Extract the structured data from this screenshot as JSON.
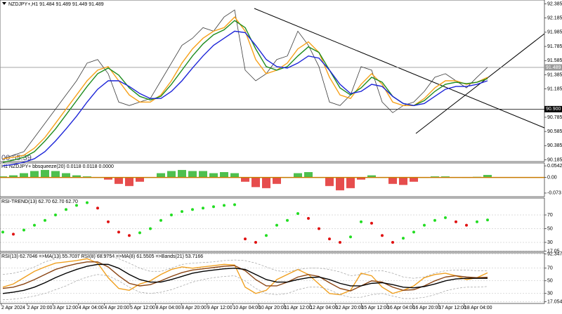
{
  "chart_data": [
    {
      "type": "line",
      "title": "NZDJPY+,H1  91.484 91.489 91.449 91.489",
      "timer": "00:55:39",
      "ylim": [
        90.16,
        92.44
      ],
      "yticks": [
        92.385,
        92.185,
        91.985,
        91.785,
        91.585,
        91.385,
        91.185,
        90.785,
        90.585,
        90.385,
        90.185
      ],
      "price_lines": [
        {
          "value": 91.489,
          "label": "91.489",
          "color": "#9a9a9a"
        },
        {
          "value": 90.9,
          "label": "90.900",
          "color": "#000000"
        }
      ],
      "series": [
        {
          "color": "#3a3a3a",
          "values": [
            90.2,
            90.25,
            90.3,
            90.5,
            90.7,
            90.9,
            91.1,
            91.3,
            91.55,
            91.6,
            91.4,
            91.0,
            90.95,
            91.0,
            91.05,
            91.3,
            91.55,
            91.8,
            91.9,
            92.05,
            92.0,
            92.2,
            92.3,
            91.45,
            91.3,
            91.4,
            91.6,
            91.65,
            92.0,
            91.8,
            91.5,
            91.0,
            90.95,
            91.1,
            91.5,
            91.45,
            91.0,
            90.85,
            90.95,
            91.0,
            91.15,
            91.35,
            91.4,
            91.3,
            91.2,
            91.35,
            91.49
          ]
        },
        {
          "color": "#f7a11a",
          "values": [
            90.2,
            90.22,
            90.25,
            90.35,
            90.5,
            90.7,
            90.9,
            91.1,
            91.3,
            91.45,
            91.5,
            91.3,
            91.1,
            91.0,
            91.0,
            91.1,
            91.3,
            91.55,
            91.75,
            91.9,
            92.0,
            92.05,
            92.2,
            92.0,
            91.6,
            91.4,
            91.45,
            91.55,
            91.75,
            91.85,
            91.7,
            91.35,
            91.1,
            91.05,
            91.25,
            91.4,
            91.25,
            91.0,
            90.95,
            90.95,
            91.05,
            91.2,
            91.3,
            91.3,
            91.25,
            91.28,
            91.35
          ]
        },
        {
          "color": "#1e8c1e",
          "values": [
            90.15,
            90.18,
            90.22,
            90.3,
            90.45,
            90.62,
            90.82,
            91.02,
            91.22,
            91.4,
            91.48,
            91.38,
            91.2,
            91.08,
            91.03,
            91.08,
            91.25,
            91.45,
            91.65,
            91.82,
            91.95,
            92.02,
            92.15,
            92.05,
            91.75,
            91.5,
            91.45,
            91.5,
            91.65,
            91.78,
            91.7,
            91.45,
            91.2,
            91.1,
            91.2,
            91.35,
            91.28,
            91.08,
            90.98,
            90.95,
            91.02,
            91.15,
            91.25,
            91.28,
            91.26,
            91.28,
            91.33
          ]
        },
        {
          "color": "#1c24d8",
          "values": [
            90.1,
            90.12,
            90.15,
            90.2,
            90.3,
            90.45,
            90.62,
            90.8,
            91.0,
            91.18,
            91.3,
            91.3,
            91.22,
            91.12,
            91.05,
            91.05,
            91.15,
            91.3,
            91.48,
            91.65,
            91.8,
            91.9,
            92.0,
            91.98,
            91.8,
            91.6,
            91.5,
            91.48,
            91.55,
            91.65,
            91.62,
            91.45,
            91.25,
            91.12,
            91.15,
            91.25,
            91.22,
            91.08,
            90.98,
            90.95,
            90.98,
            91.08,
            91.18,
            91.22,
            91.22,
            91.25,
            91.3
          ]
        }
      ]
    },
    {
      "type": "bar",
      "title": "H1 NZDJPY+ bbsqueeze(20) 0.0118 0.0118 0.0000",
      "ylim": [
        -0.0897,
        0.0676
      ],
      "yticks": [
        0.0542,
        {
          "value": 0,
          "label": "0.00"
        },
        -0.073
      ],
      "positive_color": "#22b022",
      "negative_color": "#e02020",
      "base_color": "#c87a00",
      "values": [
        0.005,
        0.01,
        0.02,
        0.03,
        0.035,
        0.03,
        0.02,
        0.01,
        0.005,
        0.0,
        -0.01,
        -0.03,
        -0.04,
        -0.02,
        0.0,
        0.02,
        0.03,
        0.035,
        0.03,
        0.03,
        0.02,
        0.025,
        0.02,
        -0.02,
        -0.045,
        -0.05,
        -0.03,
        0.0,
        0.02,
        0.025,
        0.0,
        -0.04,
        -0.06,
        -0.05,
        -0.01,
        0.01,
        0.0,
        -0.03,
        -0.035,
        -0.02,
        0.0,
        0.005,
        0.005,
        0.002,
        0.0,
        0.003,
        0.0118
      ]
    },
    {
      "type": "dots",
      "title": "RSI-TREND(13) 62.70 62.70 62.70",
      "ylim": [
        16.7,
        94.6
      ],
      "yticks": [
        70,
        50,
        30,
        17.05
      ],
      "grid": true,
      "up_color": "#22dd22",
      "down_color": "#e01010",
      "values": [
        45,
        42,
        48,
        55,
        62,
        70,
        78,
        84,
        88,
        80,
        60,
        45,
        40,
        44,
        50,
        62,
        70,
        75,
        78,
        80,
        82,
        84,
        85,
        35,
        30,
        40,
        55,
        62,
        72,
        65,
        50,
        35,
        30,
        38,
        60,
        58,
        40,
        30,
        36,
        45,
        55,
        62,
        66,
        60,
        55,
        60,
        62.7
      ]
    },
    {
      "type": "line",
      "title": "RSI(13) 62.7046 =>MA(13) 55.7037 RSI(8) 68.9754 =>MA(8) 61.5505 =>Bands(21) 53.7166",
      "ylim": [
        14.2,
        94.2
      ],
      "yticks": [
        92.3478,
        70,
        50,
        30,
        17.0546
      ],
      "grid": true,
      "time_labels": [
        "2 Apr 2024",
        "2 Apr 20:00",
        "3 Apr 12:00",
        "4 Apr 04:00",
        "4 Apr 20:00",
        "5 Apr 12:00",
        "8 Apr 04:00",
        "8 Apr 20:00",
        "9 Apr 12:00",
        "10 Apr 04:00",
        "10 Apr 20:00",
        "11 Apr 12:00",
        "12 Apr 04:00",
        "12 Apr 20:00",
        "15 Apr 12:00",
        "16 Apr 04:00",
        "16 Apr 20:00",
        "17 Apr 12:00",
        "18 Apr 04:00"
      ],
      "series": [
        {
          "color": "#f0a020",
          "values": [
            40,
            45,
            55,
            65,
            72,
            78,
            80,
            82,
            85,
            78,
            55,
            38,
            35,
            45,
            50,
            60,
            68,
            72,
            70,
            72,
            74,
            76,
            75,
            40,
            30,
            35,
            52,
            60,
            68,
            60,
            45,
            30,
            28,
            35,
            62,
            58,
            40,
            30,
            35,
            42,
            55,
            60,
            62,
            58,
            52,
            55,
            62.7
          ]
        },
        {
          "color": "#8b4513",
          "values": [
            38,
            40,
            45,
            52,
            60,
            68,
            73,
            77,
            80,
            80,
            72,
            58,
            46,
            42,
            44,
            50,
            57,
            63,
            67,
            69,
            71,
            73,
            74,
            66,
            52,
            42,
            42,
            48,
            56,
            60,
            57,
            47,
            38,
            34,
            42,
            50,
            48,
            40,
            35,
            36,
            42,
            50,
            56,
            58,
            56,
            55,
            55.7
          ]
        },
        {
          "color": "#000000",
          "values": [
            30,
            32,
            35,
            40,
            47,
            55,
            62,
            68,
            73,
            76,
            76,
            70,
            60,
            52,
            48,
            48,
            52,
            57,
            62,
            65,
            67,
            69,
            70,
            68,
            60,
            52,
            48,
            48,
            52,
            55,
            56,
            52,
            46,
            42,
            42,
            46,
            47,
            44,
            40,
            39,
            41,
            45,
            50,
            53,
            54,
            54,
            54
          ]
        },
        {
          "color": "#a0a0a0",
          "dashed": true,
          "values": [
            60,
            62,
            66,
            72,
            80,
            85,
            88,
            90,
            92,
            92,
            90,
            85,
            78,
            70,
            65,
            65,
            70,
            76,
            78,
            79,
            80,
            82,
            83,
            82,
            78,
            72,
            66,
            64,
            68,
            70,
            70,
            68,
            64,
            58,
            60,
            66,
            66,
            62,
            56,
            54,
            56,
            62,
            66,
            67,
            67,
            66,
            66
          ]
        },
        {
          "color": "#a0a0a0",
          "dashed": true,
          "values": [
            20,
            21,
            23,
            26,
            30,
            36,
            42,
            50,
            56,
            60,
            58,
            50,
            40,
            32,
            30,
            32,
            36,
            42,
            48,
            52,
            55,
            57,
            58,
            50,
            38,
            30,
            28,
            30,
            36,
            40,
            40,
            36,
            28,
            24,
            24,
            28,
            30,
            26,
            22,
            22,
            24,
            28,
            34,
            38,
            40,
            40,
            41
          ]
        }
      ]
    }
  ]
}
